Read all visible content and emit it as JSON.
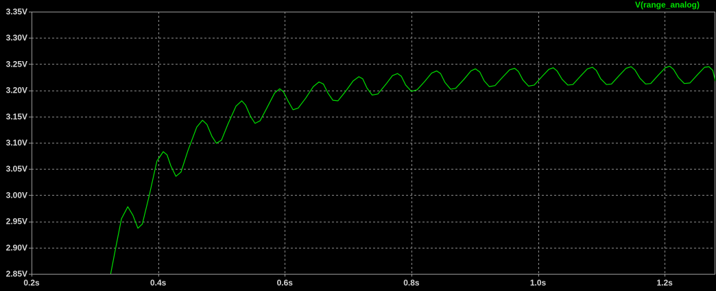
{
  "chart_data": {
    "type": "line",
    "title": "",
    "xlabel": "",
    "ylabel": "",
    "xlim": [
      0.2,
      1.28
    ],
    "ylim": [
      2.85,
      3.35
    ],
    "grid": true,
    "grid_style": "dashed",
    "legend_position": "top-right",
    "colors": {
      "background": "#000000",
      "frame": "#9a9a9a",
      "grid": "#8c8c8c",
      "tick_text": "#d7d7d7",
      "trace": "#00e000"
    },
    "x_ticks": [
      {
        "value": 0.2,
        "label": "0.2s"
      },
      {
        "value": 0.4,
        "label": "0.4s"
      },
      {
        "value": 0.6,
        "label": "0.6s"
      },
      {
        "value": 0.8,
        "label": "0.8s"
      },
      {
        "value": 1.0,
        "label": "1.0s"
      },
      {
        "value": 1.2,
        "label": "1.2s"
      }
    ],
    "y_ticks": [
      {
        "value": 2.85,
        "label": "2.85V"
      },
      {
        "value": 2.9,
        "label": "2.90V"
      },
      {
        "value": 2.95,
        "label": "2.95V"
      },
      {
        "value": 3.0,
        "label": "3.00V"
      },
      {
        "value": 3.05,
        "label": "3.05V"
      },
      {
        "value": 3.1,
        "label": "3.10V"
      },
      {
        "value": 3.15,
        "label": "3.15V"
      },
      {
        "value": 3.2,
        "label": "3.20V"
      },
      {
        "value": 3.25,
        "label": "3.25V"
      },
      {
        "value": 3.3,
        "label": "3.30V"
      },
      {
        "value": 3.35,
        "label": "3.35V"
      }
    ],
    "series": [
      {
        "name": "V(range_analog)",
        "color": "#00e000",
        "points": [
          [
            0.325,
            2.85
          ],
          [
            0.333,
            2.9
          ],
          [
            0.342,
            2.955
          ],
          [
            0.352,
            2.978
          ],
          [
            0.36,
            2.962
          ],
          [
            0.368,
            2.937
          ],
          [
            0.375,
            2.945
          ],
          [
            0.386,
            3.0
          ],
          [
            0.398,
            3.065
          ],
          [
            0.408,
            3.083
          ],
          [
            0.414,
            3.077
          ],
          [
            0.42,
            3.056
          ],
          [
            0.428,
            3.036
          ],
          [
            0.436,
            3.044
          ],
          [
            0.447,
            3.085
          ],
          [
            0.461,
            3.13
          ],
          [
            0.47,
            3.143
          ],
          [
            0.477,
            3.135
          ],
          [
            0.485,
            3.112
          ],
          [
            0.492,
            3.099
          ],
          [
            0.5,
            3.105
          ],
          [
            0.51,
            3.135
          ],
          [
            0.523,
            3.17
          ],
          [
            0.532,
            3.18
          ],
          [
            0.538,
            3.172
          ],
          [
            0.546,
            3.15
          ],
          [
            0.553,
            3.137
          ],
          [
            0.561,
            3.142
          ],
          [
            0.572,
            3.167
          ],
          [
            0.584,
            3.195
          ],
          [
            0.592,
            3.203
          ],
          [
            0.598,
            3.197
          ],
          [
            0.605,
            3.18
          ],
          [
            0.613,
            3.163
          ],
          [
            0.621,
            3.166
          ],
          [
            0.633,
            3.185
          ],
          [
            0.645,
            3.207
          ],
          [
            0.654,
            3.216
          ],
          [
            0.661,
            3.212
          ],
          [
            0.668,
            3.195
          ],
          [
            0.676,
            3.181
          ],
          [
            0.684,
            3.18
          ],
          [
            0.696,
            3.198
          ],
          [
            0.708,
            3.218
          ],
          [
            0.717,
            3.226
          ],
          [
            0.723,
            3.222
          ],
          [
            0.73,
            3.204
          ],
          [
            0.738,
            3.191
          ],
          [
            0.747,
            3.193
          ],
          [
            0.76,
            3.212
          ],
          [
            0.77,
            3.228
          ],
          [
            0.778,
            3.232
          ],
          [
            0.784,
            3.227
          ],
          [
            0.791,
            3.21
          ],
          [
            0.8,
            3.198
          ],
          [
            0.809,
            3.201
          ],
          [
            0.821,
            3.217
          ],
          [
            0.832,
            3.233
          ],
          [
            0.84,
            3.237
          ],
          [
            0.846,
            3.232
          ],
          [
            0.853,
            3.215
          ],
          [
            0.862,
            3.202
          ],
          [
            0.87,
            3.204
          ],
          [
            0.883,
            3.221
          ],
          [
            0.894,
            3.237
          ],
          [
            0.901,
            3.241
          ],
          [
            0.908,
            3.235
          ],
          [
            0.915,
            3.218
          ],
          [
            0.923,
            3.207
          ],
          [
            0.932,
            3.209
          ],
          [
            0.944,
            3.225
          ],
          [
            0.955,
            3.239
          ],
          [
            0.963,
            3.242
          ],
          [
            0.969,
            3.236
          ],
          [
            0.976,
            3.22
          ],
          [
            0.985,
            3.208
          ],
          [
            0.994,
            3.21
          ],
          [
            1.006,
            3.226
          ],
          [
            1.017,
            3.24
          ],
          [
            1.024,
            3.243
          ],
          [
            1.03,
            3.237
          ],
          [
            1.038,
            3.221
          ],
          [
            1.047,
            3.21
          ],
          [
            1.055,
            3.211
          ],
          [
            1.067,
            3.227
          ],
          [
            1.078,
            3.241
          ],
          [
            1.086,
            3.244
          ],
          [
            1.092,
            3.238
          ],
          [
            1.099,
            3.222
          ],
          [
            1.108,
            3.211
          ],
          [
            1.116,
            3.212
          ],
          [
            1.128,
            3.228
          ],
          [
            1.139,
            3.242
          ],
          [
            1.147,
            3.245
          ],
          [
            1.153,
            3.239
          ],
          [
            1.161,
            3.223
          ],
          [
            1.17,
            3.212
          ],
          [
            1.178,
            3.213
          ],
          [
            1.19,
            3.229
          ],
          [
            1.201,
            3.243
          ],
          [
            1.208,
            3.246
          ],
          [
            1.214,
            3.24
          ],
          [
            1.222,
            3.224
          ],
          [
            1.231,
            3.213
          ],
          [
            1.24,
            3.214
          ],
          [
            1.252,
            3.23
          ],
          [
            1.263,
            3.244
          ],
          [
            1.27,
            3.245
          ],
          [
            1.276,
            3.238
          ],
          [
            1.28,
            3.218
          ],
          [
            1.285,
            3.212
          ],
          [
            1.29,
            3.215
          ]
        ]
      }
    ]
  }
}
